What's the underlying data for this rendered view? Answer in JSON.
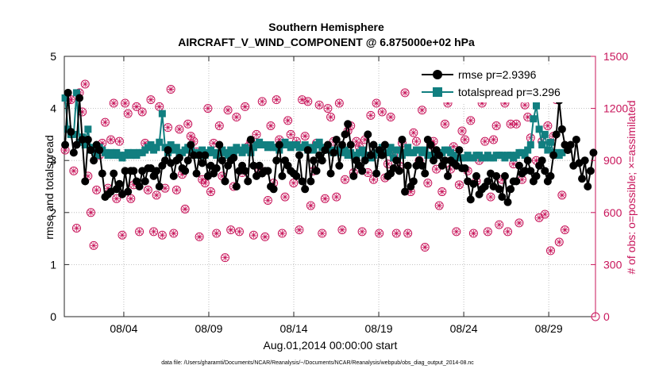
{
  "chart_data": {
    "type": "line",
    "title": "Southern Hemisphere",
    "subtitle": "AIRCRAFT_V_WIND_COMPONENT @ 6.875000e+02 hPa",
    "xlabel": "Aug.01,2014 00:00:00 start",
    "ylabel": "rmse and totalspread",
    "ylabel_right": "# of obs: o=possible; ×=assimilated",
    "footnote": "data file: /Users/gharamti/Documents/NCAR/Reanalysis/~/Documents/NCAR/Reanalysis/webpub/obs_diag_output_2014-08.nc",
    "x_ticks": [
      "08/04",
      "08/09",
      "08/14",
      "08/19",
      "08/24",
      "08/29"
    ],
    "y_ticks": [
      "0",
      "1",
      "2",
      "3",
      "4",
      "5"
    ],
    "y2_ticks": [
      "0",
      "300",
      "600",
      "900",
      "1200",
      "1500"
    ],
    "xlim": [
      0.5,
      31.75
    ],
    "ylim": [
      0,
      5
    ],
    "y2lim": [
      0,
      1500
    ],
    "legend": [
      {
        "label": "rmse pr=2.9396",
        "color": "#000000",
        "marker": "circle"
      },
      {
        "label": "totalspread pr=3.296",
        "color": "#117f80",
        "marker": "square"
      }
    ],
    "series": [
      {
        "name": "rmse",
        "color": "#000000",
        "values": [
          3.3,
          4.3,
          3.55,
          3.15,
          3.3,
          4.2,
          3.4,
          2.6,
          3.4,
          3.2,
          3.0,
          3.3,
          3.2,
          2.75,
          2.3,
          2.35,
          2.4,
          2.75,
          2.45,
          2.55,
          2.35,
          2.8,
          2.4,
          2.8,
          2.8,
          2.6,
          2.5,
          2.8,
          2.6,
          2.85,
          2.85,
          2.7,
          2.8,
          2.5,
          2.9,
          3.0,
          3.2,
          2.95,
          2.7,
          3.0,
          3.05,
          2.85,
          2.8,
          3.0,
          3.3,
          3.1,
          2.75,
          3.1,
          2.95,
          3.1,
          2.7,
          2.9,
          2.75,
          2.85,
          3.3,
          3.0,
          2.6,
          2.9,
          3.0,
          3.05,
          2.5,
          2.8,
          2.9,
          2.8,
          2.6,
          3.4,
          2.9,
          2.7,
          2.9,
          2.75,
          2.8,
          2.8,
          2.5,
          2.45,
          3.0,
          3.3,
          2.7,
          3.0,
          2.9,
          2.8,
          2.75,
          2.7,
          3.1,
          2.6,
          2.45,
          3.2,
          2.6,
          3.0,
          2.8,
          3.1,
          3.0,
          3.2,
          3.3,
          2.75,
          3.15,
          3.4,
          2.9,
          3.3,
          3.5,
          3.7,
          3.3,
          2.7,
          3.0,
          2.9,
          2.8,
          3.0,
          3.5,
          3.1,
          3.3,
          2.75,
          3.2,
          3.1,
          3.3,
          2.7,
          2.75,
          2.85,
          3.0,
          2.8,
          3.4,
          2.4,
          2.9,
          2.5,
          2.6,
          2.9,
          3.0,
          2.9,
          2.75,
          3.4,
          3.3,
          3.0,
          3.2,
          3.1,
          2.9,
          3.0,
          2.7,
          3.0,
          2.95,
          2.9,
          3.2,
          2.85,
          2.85,
          2.6,
          2.25,
          2.55,
          2.7,
          2.35,
          2.45,
          2.5,
          2.6,
          2.75,
          2.5,
          2.7,
          2.45,
          2.3,
          2.7,
          2.2,
          2.45,
          2.6,
          2.6,
          2.9,
          2.75,
          2.8,
          3.0,
          2.8,
          2.6,
          2.7,
          2.9,
          3.0,
          2.8,
          2.6,
          2.7,
          3.1,
          3.5,
          4.15,
          3.6,
          3.3,
          3.2,
          3.3,
          2.9,
          3.4,
          2.95,
          2.65,
          3.0,
          2.5,
          2.8,
          3.15
        ],
        "start_day": 0.55,
        "step": 0.168
      },
      {
        "name": "totalspread",
        "color": "#117f80",
        "values": [
          4.2,
          3.6,
          3.5,
          3.5,
          4.3,
          3.35,
          3.45,
          3.3,
          3.6,
          3.2,
          3.25,
          3.1,
          3.25,
          3.2,
          3.15,
          3.1,
          3.15,
          3.1,
          3.15,
          3.1,
          3.05,
          3.1,
          3.15,
          3.1,
          3.15,
          3.1,
          3.15,
          3.15,
          3.2,
          3.25,
          3.3,
          3.2,
          3.25,
          3.35,
          3.9,
          3.25,
          3.15,
          3.3,
          3.2,
          3.25,
          3.15,
          3.15,
          3.2,
          3.25,
          3.2,
          3.15,
          3.15,
          3.1,
          3.2,
          3.1,
          3.15,
          3.2,
          3.15,
          3.1,
          3.15,
          3.2,
          3.15,
          3.1,
          3.2,
          3.15,
          3.25,
          3.2,
          3.15,
          3.25,
          3.2,
          3.15,
          3.25,
          3.3,
          3.35,
          3.3,
          3.3,
          3.25,
          3.3,
          3.25,
          3.25,
          3.2,
          3.3,
          3.35,
          3.3,
          3.25,
          3.3,
          3.3,
          3.25,
          3.25,
          3.3,
          3.2,
          3.25,
          3.2,
          3.3,
          3.35,
          3.25,
          3.2,
          3.25,
          3.2,
          3.15,
          3.2,
          3.2,
          3.15,
          3.2,
          3.1,
          3.15,
          3.1,
          3.1,
          3.15,
          3.2,
          3.1,
          3.1,
          3.05,
          3.1,
          3.15,
          3.2,
          3.25,
          3.15,
          3.15,
          3.25,
          3.05,
          3.2,
          3.2,
          3.1,
          3.15,
          3.25,
          3.15,
          3.15,
          3.2,
          3.2,
          3.15,
          3.2,
          3.1,
          3.1,
          3.05,
          3.1,
          3.1,
          3.15,
          3.2,
          3.2,
          3.15,
          3.1,
          3.05,
          3.05,
          3.05,
          3.05,
          3.1,
          3.05,
          3.05,
          3.1,
          3.1,
          3.05,
          3.05,
          3.1,
          3.05,
          3.05,
          3.1,
          3.1,
          3.1,
          3.05,
          3.1,
          3.1,
          3.05,
          3.1,
          3.15,
          3.15,
          3.1,
          3.2,
          3.3,
          3.8,
          4.05,
          3.6,
          3.3,
          3.5,
          3.2,
          3.35,
          3.15,
          3.15,
          3.1,
          3.15
        ],
        "start_day": 0.55,
        "step": 0.168
      },
      {
        "name": "obs_possible",
        "color": "#c8145a",
        "axis": "right",
        "values": [
          960,
          1250,
          1250,
          840,
          510,
          1290,
          1180,
          1340,
          810,
          600,
          410,
          730,
          930,
          1000,
          1120,
          740,
          1020,
          1230,
          680,
          1010,
          470,
          1230,
          1170,
          680,
          760,
          1210,
          490,
          1180,
          1000,
          730,
          1250,
          490,
          700,
          1210,
          470,
          740,
          1090,
          1310,
          480,
          730,
          1080,
          820,
          620,
          1110,
          1040,
          1010,
          950,
          460,
          790,
          770,
          1200,
          720,
          1000,
          480,
          1100,
          810,
          340,
          1190,
          500,
          750,
          1150,
          490,
          830,
          1210,
          980,
          1010,
          470,
          1050,
          850,
          1240,
          460,
          670,
          1100,
          770,
          1250,
          1020,
          480,
          690,
          1130,
          1050,
          770,
          1010,
          500,
          1250,
          1040,
          1240,
          640,
          840,
          1000,
          1220,
          480,
          680,
          1200,
          1150,
          1010,
          690,
          1230,
          500,
          790,
          1070,
          1100,
          830,
          1010,
          980,
          490,
          1020,
          830,
          1160,
          790,
          1230,
          480,
          1180,
          800,
          880,
          1150,
          930,
          480,
          870,
          1000,
          1290,
          480,
          720,
          1060,
          1010,
          900,
          1190,
          400,
          770,
          990,
          1010,
          850,
          640,
          720,
          1110,
          1230,
          850,
          980,
          490,
          760,
          1070,
          1020,
          840,
          1130,
          480,
          780,
          900,
          1230,
          1010,
          490,
          690,
          1020,
          1100,
          530,
          790,
          1230,
          490,
          1110,
          880,
          1110,
          540,
          790,
          1220,
          1150,
          1030,
          1310,
          900,
          570,
          1010,
          590,
          1100,
          380,
          1040,
          1250,
          430,
          700,
          500
        ],
        "start_day": 0.55,
        "step": 0.168
      }
    ]
  }
}
